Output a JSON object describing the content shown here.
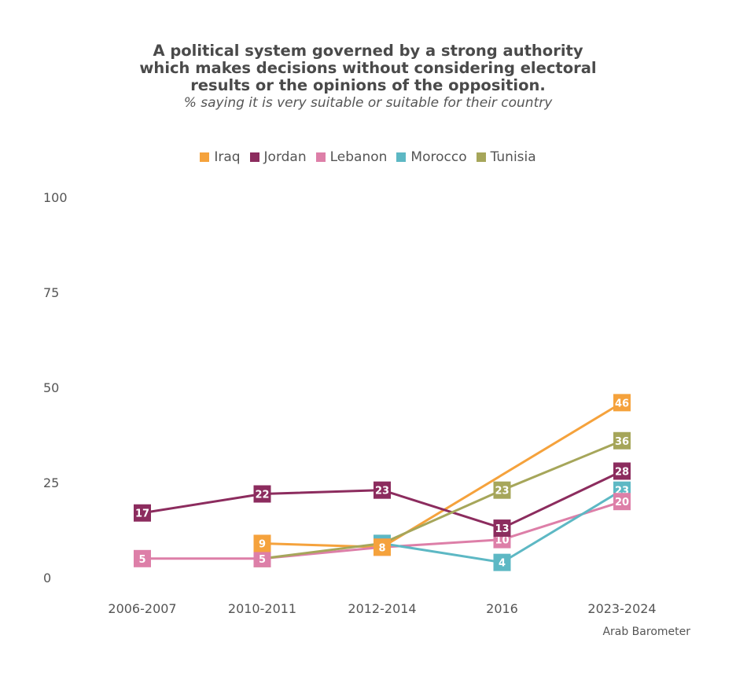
{
  "title": "A political system governed by a strong authority which makes decisions without considering electoral results or the opinions of the opposition.",
  "subtitle": "% saying it is very suitable or suitable for their country",
  "source": "Arab Barometer",
  "chart_data": {
    "type": "line",
    "categories": [
      "2006-2007",
      "2010-2011",
      "2012-2014",
      "2016",
      "2023-2024"
    ],
    "ylim": [
      0,
      100
    ],
    "yticks": [
      0,
      25,
      50,
      75,
      100
    ],
    "grid": false,
    "legend_position": "top",
    "series": [
      {
        "name": "Iraq",
        "color": "#f5a23c",
        "values": [
          null,
          9,
          8,
          null,
          46
        ]
      },
      {
        "name": "Jordan",
        "color": "#8c2c5e",
        "values": [
          17,
          22,
          23,
          13,
          28
        ]
      },
      {
        "name": "Lebanon",
        "color": "#dd7fa8",
        "values": [
          5,
          5,
          8,
          10,
          20
        ]
      },
      {
        "name": "Morocco",
        "color": "#5db8c4",
        "values": [
          null,
          null,
          9,
          4,
          23
        ]
      },
      {
        "name": "Tunisia",
        "color": "#a6a65a",
        "values": [
          null,
          5,
          9,
          23,
          36
        ]
      }
    ]
  }
}
